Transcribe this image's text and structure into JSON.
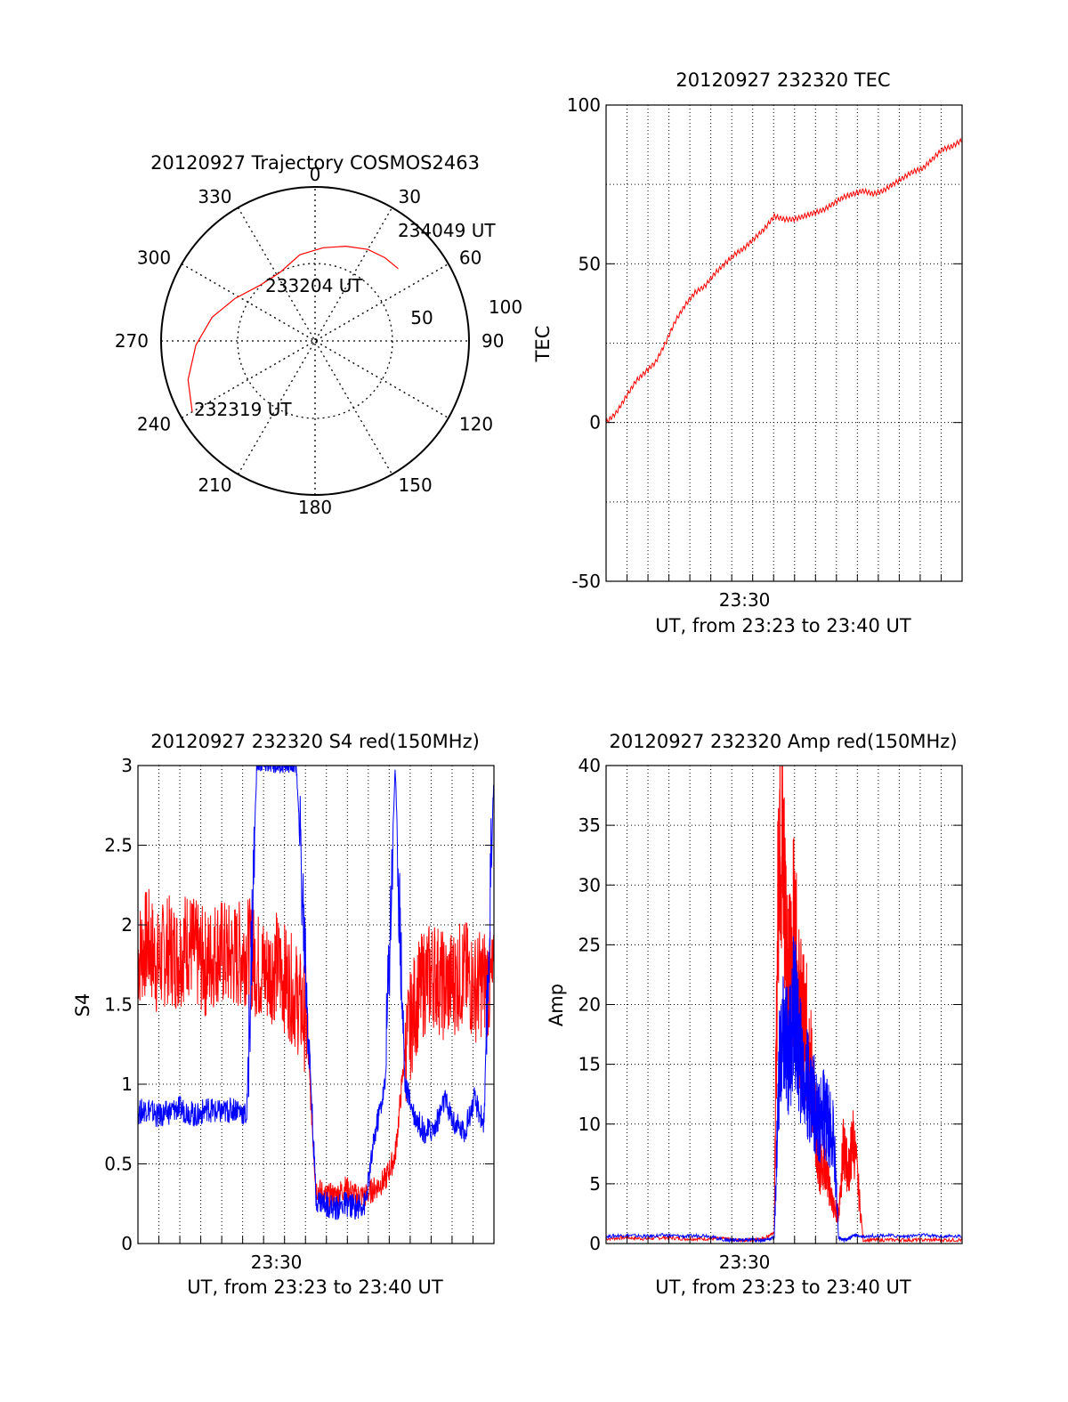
{
  "colors": {
    "red": "#ff0000",
    "blue": "#0000ff",
    "axis": "#000000",
    "grid": "#000000"
  },
  "chart_data": [
    {
      "id": "trajectory",
      "type": "polar",
      "title": "20120927 Trajectory COSMOS2463",
      "azimuth_labels": [
        "0",
        "30",
        "60",
        "90",
        "120",
        "150",
        "180",
        "210",
        "240",
        "270",
        "300",
        "330"
      ],
      "radial_labels": [
        "50",
        "100"
      ],
      "rlim": [
        0,
        100
      ],
      "grid": true,
      "track": {
        "color": "red",
        "azimuth_deg": [
          240,
          253,
          268,
          283,
          298,
          315,
          333,
          350,
          5,
          18,
          30,
          40,
          49
        ],
        "zenith_deg": [
          94,
          88,
          79,
          70,
          60,
          52,
          51,
          58,
          62,
          66,
          70,
          72,
          73
        ]
      },
      "annotations": [
        {
          "text": "232319 UT",
          "azimuth_deg": 240,
          "zenith_deg": 94
        },
        {
          "text": "233204 UT",
          "azimuth_deg": 310,
          "zenith_deg": 51
        },
        {
          "text": "234049 UT",
          "azimuth_deg": 49,
          "zenith_deg": 73
        }
      ]
    },
    {
      "id": "tec",
      "type": "line",
      "title": "20120927 232320 TEC",
      "xlabel": "UT, from 23:23 to 23:40 UT",
      "ylabel": "TEC",
      "xlim": [
        23.3833,
        23.6833
      ],
      "ylim": [
        -50,
        100
      ],
      "yticks": [
        "-50",
        "0",
        "50",
        "100"
      ],
      "xticks": [
        {
          "x": 23.5,
          "label": "23:30"
        }
      ],
      "grid": true,
      "series": [
        {
          "color": "red",
          "x": [
            23.3833,
            23.3917,
            23.4,
            23.4083,
            23.4167,
            23.425,
            23.4333,
            23.4417,
            23.45,
            23.4583,
            23.4667,
            23.475,
            23.4833,
            23.4917,
            23.5,
            23.5083,
            23.5167,
            23.525,
            23.5333,
            23.5417,
            23.55,
            23.5583,
            23.5667,
            23.575,
            23.5833,
            23.5917,
            23.6,
            23.6083,
            23.6167,
            23.625,
            23.6333,
            23.6417,
            23.65,
            23.6583,
            23.6667,
            23.675,
            23.6833
          ],
          "y": [
            0,
            3,
            8,
            13,
            16,
            19,
            25,
            32,
            37,
            41,
            43,
            47,
            50,
            53,
            55,
            58,
            61,
            65,
            64,
            64,
            65,
            66,
            67,
            69,
            71,
            72,
            73,
            72,
            73,
            75,
            77,
            79,
            80,
            83,
            86,
            87,
            89
          ]
        }
      ]
    },
    {
      "id": "s4",
      "type": "line",
      "title": "20120927 232320 S4 red(150MHz)",
      "xlabel": "UT, from 23:23 to 23:40 UT",
      "ylabel": "S4",
      "xlim": [
        23.3833,
        23.6833
      ],
      "ylim": [
        0,
        3
      ],
      "yticks": [
        "0",
        "0.5",
        "1",
        "1.5",
        "2",
        "2.5",
        "3"
      ],
      "xticks": [
        {
          "x": 23.5,
          "label": "23:30"
        }
      ],
      "grid": true,
      "series": [
        {
          "color": "red",
          "x": [
            23.3833,
            23.3917,
            23.4,
            23.4083,
            23.4167,
            23.425,
            23.4333,
            23.4417,
            23.45,
            23.4583,
            23.4667,
            23.475,
            23.4833,
            23.4917,
            23.5,
            23.5083,
            23.5167,
            23.525,
            23.5333,
            23.5417,
            23.55,
            23.5583,
            23.5667,
            23.575,
            23.5833,
            23.5917,
            23.6,
            23.6083,
            23.6167,
            23.625,
            23.6333,
            23.6417,
            23.65,
            23.6583,
            23.6667,
            23.675,
            23.6833
          ],
          "y": [
            1.8,
            1.9,
            1.75,
            1.85,
            1.8,
            1.9,
            1.8,
            1.75,
            1.85,
            1.8,
            1.8,
            1.85,
            1.75,
            1.7,
            1.75,
            1.65,
            1.55,
            1.4,
            0.35,
            0.3,
            0.3,
            0.35,
            0.3,
            0.3,
            0.35,
            0.4,
            0.55,
            1.2,
            1.5,
            1.65,
            1.7,
            1.6,
            1.65,
            1.7,
            1.6,
            1.65,
            1.6
          ]
        },
        {
          "color": "blue",
          "x": [
            23.3833,
            23.3917,
            23.4,
            23.4083,
            23.4167,
            23.425,
            23.4333,
            23.4417,
            23.45,
            23.4583,
            23.4667,
            23.475,
            23.4833,
            23.4917,
            23.5,
            23.5083,
            23.5167,
            23.525,
            23.5333,
            23.5417,
            23.55,
            23.5583,
            23.5667,
            23.575,
            23.5833,
            23.5917,
            23.6,
            23.6083,
            23.6167,
            23.625,
            23.6333,
            23.6417,
            23.65,
            23.6583,
            23.6667,
            23.675,
            23.6833
          ],
          "y": [
            0.82,
            0.85,
            0.8,
            0.82,
            0.85,
            0.83,
            0.8,
            0.85,
            0.82,
            0.83,
            0.85,
            0.8,
            3,
            3,
            3,
            3,
            3,
            1.7,
            0.28,
            0.25,
            0.22,
            0.25,
            0.23,
            0.25,
            0.7,
            1.0,
            3,
            1.0,
            0.8,
            0.7,
            0.72,
            0.9,
            0.75,
            0.7,
            0.9,
            0.75,
            3
          ]
        }
      ]
    },
    {
      "id": "amp",
      "type": "line",
      "title": "20120927 232320 Amp red(150MHz)",
      "xlabel": "UT, from 23:23 to 23:40 UT",
      "ylabel": "Amp",
      "xlim": [
        23.3833,
        23.6833
      ],
      "ylim": [
        0,
        40
      ],
      "yticks": [
        "0",
        "5",
        "10",
        "15",
        "20",
        "25",
        "30",
        "35",
        "40"
      ],
      "xticks": [
        {
          "x": 23.5,
          "label": "23:30"
        }
      ],
      "grid": true,
      "series": [
        {
          "color": "red",
          "x": [
            23.3833,
            23.4,
            23.4167,
            23.4333,
            23.45,
            23.4667,
            23.4833,
            23.4917,
            23.5,
            23.5083,
            23.5167,
            23.525,
            23.5292,
            23.5333,
            23.5375,
            23.5417,
            23.5458,
            23.55,
            23.5542,
            23.5583,
            23.5625,
            23.5667,
            23.5708,
            23.575,
            23.5792,
            23.5833,
            23.5875,
            23.5917,
            23.6,
            23.6167,
            23.6333,
            23.65,
            23.6667,
            23.6833
          ],
          "y": [
            0.4,
            0.5,
            0.4,
            0.5,
            0.4,
            0.4,
            0.4,
            0.3,
            0.3,
            0.3,
            0.4,
            1,
            38,
            30,
            22,
            26,
            20,
            18,
            17,
            12,
            6,
            7,
            5,
            3,
            2.5,
            8,
            6,
            9,
            0.3,
            0.3,
            0.3,
            0.3,
            0.3,
            0.3
          ]
        },
        {
          "color": "blue",
          "x": [
            23.3833,
            23.4,
            23.4167,
            23.4333,
            23.45,
            23.4667,
            23.4833,
            23.4917,
            23.5,
            23.5083,
            23.5167,
            23.525,
            23.5292,
            23.5333,
            23.5375,
            23.5417,
            23.5458,
            23.55,
            23.5542,
            23.5583,
            23.5625,
            23.5667,
            23.5708,
            23.575,
            23.5792,
            23.5833,
            23.5875,
            23.5917,
            23.6,
            23.6167,
            23.6333,
            23.65,
            23.6667,
            23.6833
          ],
          "y": [
            0.6,
            0.7,
            0.6,
            0.7,
            0.6,
            0.7,
            0.3,
            0.3,
            0.3,
            0.3,
            0.3,
            0.5,
            15,
            17,
            16,
            20,
            16,
            14,
            13,
            12,
            10,
            11,
            10,
            9,
            0.5,
            0.3,
            0.4,
            0.7,
            0.6,
            0.7,
            0.6,
            0.7,
            0.6,
            0.6
          ]
        }
      ]
    }
  ]
}
